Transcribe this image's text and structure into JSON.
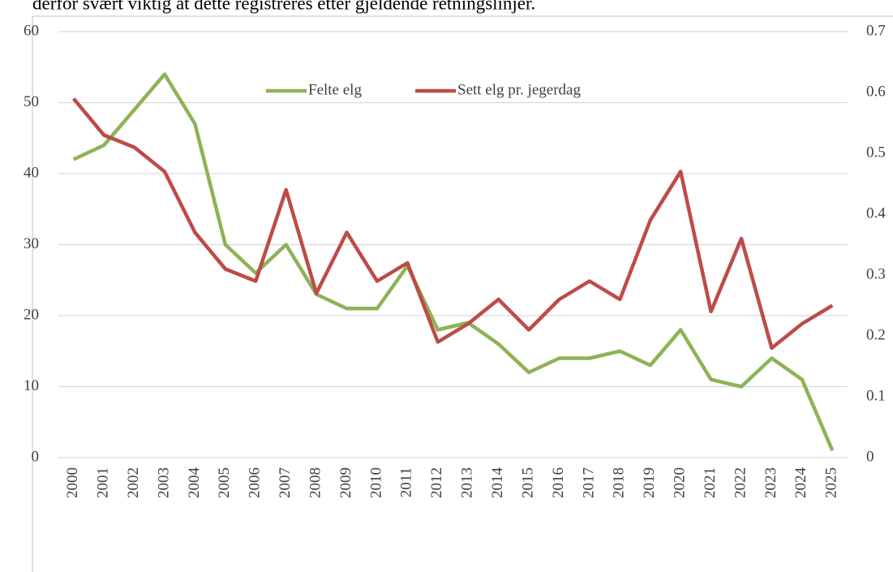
{
  "page_text": "derfor svært viktig at dette registreres etter gjeldende retningslinjer.",
  "chart_data": {
    "type": "line",
    "categories": [
      "2000",
      "2001",
      "2002",
      "2003",
      "2004",
      "2005",
      "2006",
      "2007",
      "2008",
      "2009",
      "2010",
      "2011",
      "2012",
      "2013",
      "2014",
      "2015",
      "2016",
      "2017",
      "2018",
      "2019",
      "2020",
      "2021",
      "2022",
      "2023",
      "2024",
      "2025"
    ],
    "series": [
      {
        "name": "Felte elg",
        "color": "#8db356",
        "values": [
          42,
          44,
          49,
          54,
          47,
          30,
          26,
          30,
          23,
          21,
          21,
          27,
          18,
          19,
          16,
          12,
          14,
          14,
          15,
          13,
          18,
          11,
          10,
          14,
          11,
          1
        ]
      },
      {
        "name": "Sett elg pr. jegerdag",
        "color": "#be4b48",
        "axis": "y2",
        "values": [
          0.59,
          0.53,
          0.51,
          0.47,
          0.37,
          0.31,
          0.29,
          0.44,
          0.27,
          0.37,
          0.29,
          0.32,
          0.19,
          0.22,
          0.26,
          0.21,
          0.26,
          0.29,
          0.26,
          0.39,
          0.47,
          0.24,
          0.36,
          0.18,
          0.22,
          0.25
        ]
      }
    ],
    "ylim": [
      0,
      60
    ],
    "yticks": [
      0,
      10,
      20,
      30,
      40,
      50,
      60
    ],
    "y2lim": [
      0,
      0.7
    ],
    "y2ticks": [
      0,
      0.1,
      0.2,
      0.3,
      0.4,
      0.5,
      0.6,
      0.7
    ],
    "grid": true,
    "legend": "top"
  }
}
